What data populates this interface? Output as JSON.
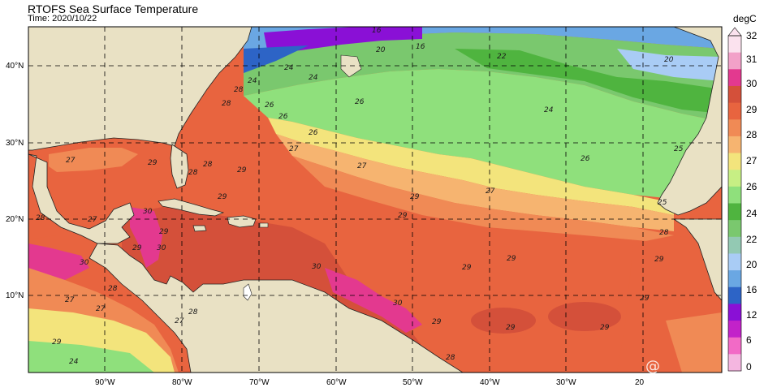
{
  "header": {
    "title": "RTOFS Sea Surface Temperature",
    "time": "Time: 2020/10/22"
  },
  "colorbar": {
    "unit": "degC",
    "ticks": [
      "32",
      "31",
      "30",
      "29",
      "28",
      "27",
      "26",
      "24",
      "22",
      "20",
      "16",
      "12",
      "6",
      "0"
    ],
    "colors": [
      "#fbe2ee",
      "#f2a1c8",
      "#e3398f",
      "#d4503a",
      "#e8643f",
      "#f08a55",
      "#f6b470",
      "#f3e47c",
      "#c7ef84",
      "#8fe07c",
      "#4fb43f",
      "#7ac86e",
      "#93c9b3",
      "#a9ccf5",
      "#6aa7e3",
      "#2d64c6",
      "#8a10d6",
      "#c222c9",
      "#f26ac6",
      "#f4b6e0"
    ]
  },
  "axes": {
    "lat_labels": [
      "40°N",
      "30°N",
      "20°N",
      "10°N"
    ],
    "lon_labels": [
      "90°W",
      "80°W",
      "70°W",
      "60°W",
      "50°W",
      "40°W",
      "30°W",
      "20"
    ]
  },
  "contour_labels": [
    "16",
    "16",
    "20",
    "20",
    "22",
    "24",
    "24",
    "24",
    "24",
    "25",
    "25",
    "26",
    "26",
    "26",
    "26",
    "26",
    "27",
    "27",
    "27",
    "27",
    "27",
    "27",
    "27",
    "27",
    "28",
    "28",
    "28",
    "28",
    "28",
    "28",
    "28",
    "28",
    "29",
    "29",
    "29",
    "29",
    "29",
    "29",
    "29",
    "29",
    "29",
    "29",
    "29",
    "29",
    "29",
    "29",
    "29",
    "30",
    "30",
    "30",
    "30",
    "30",
    "24",
    "28"
  ],
  "watermark": "@"
}
